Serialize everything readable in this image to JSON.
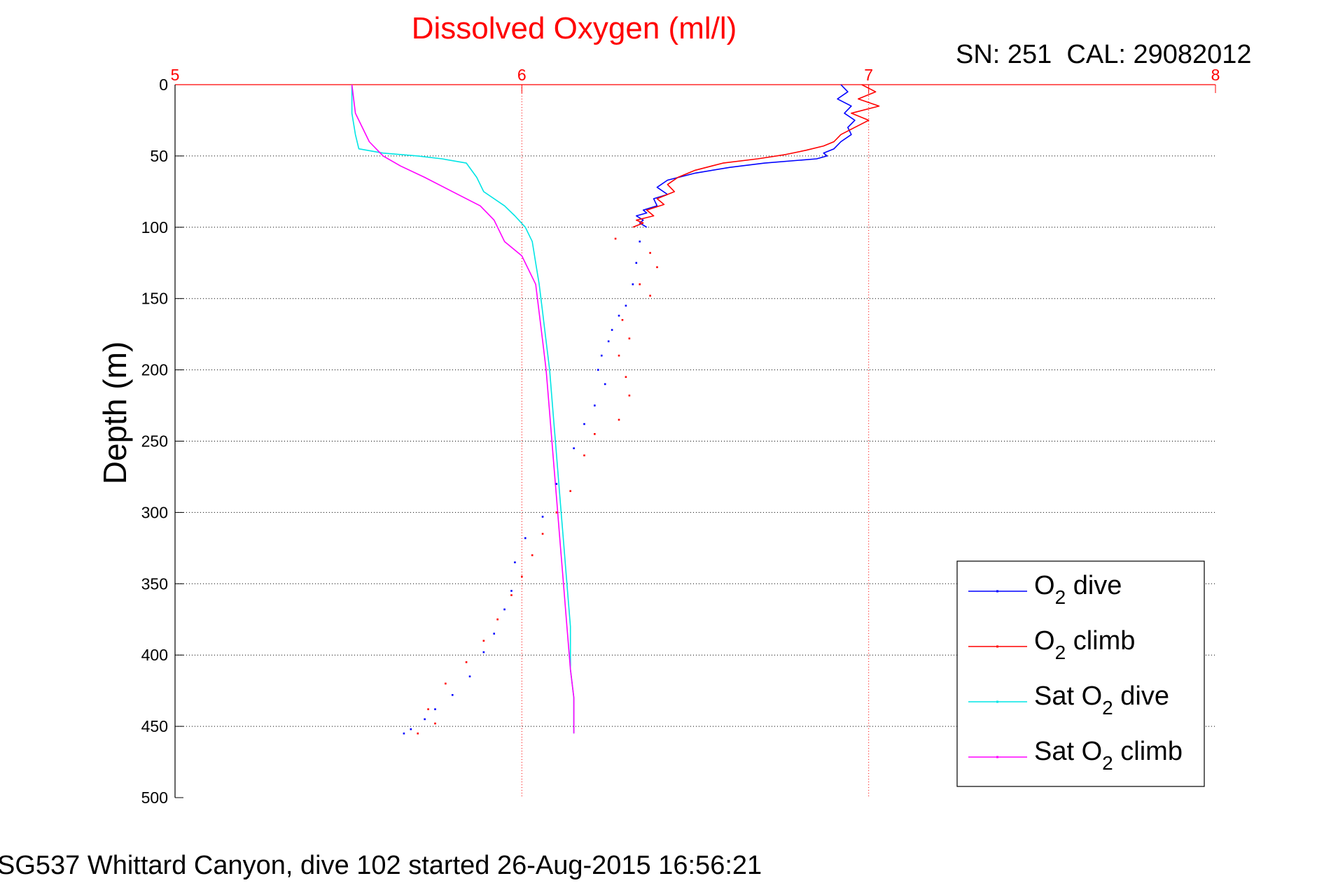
{
  "chart_data": {
    "type": "line",
    "title": "Dissolved Oxygen (ml/l)",
    "subtitle": "SN: 251  CAL: 29082012",
    "ylabel": "Depth (m)",
    "footer": "SG537 Whittard Canyon, dive 102 started 26-Aug-2015 16:56:21",
    "xlim": [
      5,
      8
    ],
    "ylim": [
      0,
      500
    ],
    "y_reversed": true,
    "x_axis_position": "top",
    "xticks": [
      "5",
      "6",
      "7",
      "8"
    ],
    "yticks": [
      "0",
      "50",
      "100",
      "150",
      "200",
      "250",
      "300",
      "350",
      "400",
      "450",
      "500"
    ],
    "grid": true,
    "legend_position": "lower-right",
    "colors": {
      "title": "#ff0000",
      "x_ticks": "#ff0000",
      "x_grid": "#ff0000",
      "y_grid": "#000000",
      "o2_dive": "#0000ff",
      "o2_climb": "#ff0000",
      "sat_dive": "#00e5e5",
      "sat_climb": "#ff00ff"
    },
    "legend": [
      {
        "pre": "O",
        "sub": "2",
        "post": " dive",
        "color_key": "o2_dive"
      },
      {
        "pre": "O",
        "sub": "2",
        "post": " climb",
        "color_key": "o2_climb"
      },
      {
        "pre": "Sat O",
        "sub": "2",
        "post": " dive",
        "color_key": "sat_dive"
      },
      {
        "pre": "Sat O",
        "sub": "2",
        "post": " climb",
        "color_key": "sat_climb"
      }
    ],
    "series": [
      {
        "name": "O2 dive",
        "color_key": "o2_dive",
        "x": [
          6.92,
          6.94,
          6.91,
          6.95,
          6.93,
          6.96,
          6.94,
          6.95,
          6.92,
          6.9,
          6.87,
          6.88,
          6.85,
          6.8,
          6.7,
          6.6,
          6.5,
          6.42,
          6.39,
          6.42,
          6.38,
          6.39,
          6.35,
          6.36,
          6.33,
          6.35,
          6.34,
          6.36
        ],
        "y": [
          0,
          5,
          10,
          15,
          20,
          25,
          30,
          35,
          40,
          45,
          48,
          50,
          52,
          53,
          55,
          58,
          62,
          67,
          72,
          77,
          80,
          85,
          88,
          90,
          92,
          95,
          97,
          100
        ]
      },
      {
        "name": "O2 climb",
        "color_key": "o2_climb",
        "x": [
          6.98,
          7.02,
          6.97,
          7.03,
          6.95,
          7.0,
          6.96,
          6.92,
          6.9,
          6.87,
          6.82,
          6.76,
          6.68,
          6.58,
          6.5,
          6.45,
          6.42,
          6.44,
          6.39,
          6.41,
          6.36,
          6.38,
          6.33,
          6.35,
          6.32
        ],
        "y": [
          0,
          5,
          10,
          15,
          20,
          25,
          30,
          35,
          40,
          43,
          46,
          49,
          52,
          55,
          60,
          65,
          70,
          75,
          80,
          84,
          88,
          92,
          95,
          97,
          100
        ]
      },
      {
        "name": "Sat O2 dive",
        "color_key": "sat_dive",
        "x": [
          5.51,
          5.51,
          5.52,
          5.53,
          5.6,
          5.7,
          5.77,
          5.84,
          5.87,
          5.89,
          5.95,
          5.98,
          6.01,
          6.03,
          6.04,
          6.05,
          6.06,
          6.07,
          6.08,
          6.09,
          6.1,
          6.11,
          6.12,
          6.13,
          6.14,
          6.14,
          6.15,
          6.15
        ],
        "y": [
          0,
          20,
          35,
          45,
          48,
          50,
          52,
          55,
          65,
          75,
          85,
          92,
          100,
          110,
          125,
          140,
          160,
          180,
          200,
          230,
          260,
          290,
          320,
          350,
          380,
          410,
          430,
          455
        ]
      },
      {
        "name": "Sat O2 climb",
        "color_key": "sat_climb",
        "x": [
          5.51,
          5.52,
          5.54,
          5.56,
          5.6,
          5.65,
          5.72,
          5.8,
          5.88,
          5.92,
          5.95,
          6.0,
          6.04,
          6.05,
          6.06,
          6.07,
          6.08,
          6.09,
          6.1,
          6.11,
          6.12,
          6.13,
          6.14,
          6.15,
          6.15
        ],
        "y": [
          0,
          20,
          30,
          40,
          50,
          57,
          65,
          75,
          85,
          95,
          110,
          120,
          140,
          160,
          180,
          200,
          230,
          260,
          290,
          320,
          350,
          380,
          410,
          430,
          455
        ]
      }
    ],
    "scatter": [
      {
        "name": "O2 dive",
        "color_key": "o2_dive",
        "x": [
          6.34,
          6.33,
          6.32,
          6.3,
          6.28,
          6.26,
          6.25,
          6.23,
          6.22,
          6.24,
          6.21,
          6.18,
          6.15,
          6.1,
          6.06,
          6.01,
          5.98,
          5.97,
          5.95,
          5.92,
          5.89,
          5.85,
          5.8,
          5.75,
          5.72,
          5.68,
          5.66
        ],
        "y": [
          110,
          125,
          140,
          155,
          162,
          172,
          180,
          190,
          200,
          210,
          225,
          238,
          255,
          280,
          303,
          318,
          335,
          355,
          368,
          385,
          398,
          415,
          428,
          438,
          445,
          452,
          455
        ]
      },
      {
        "name": "O2 climb",
        "color_key": "o2_climb",
        "x": [
          6.27,
          6.37,
          6.39,
          6.34,
          6.37,
          6.29,
          6.31,
          6.28,
          6.3,
          6.31,
          6.28,
          6.21,
          6.18,
          6.14,
          6.1,
          6.06,
          6.03,
          6.0,
          5.97,
          5.93,
          5.89,
          5.84,
          5.78,
          5.73,
          5.75,
          5.7
        ],
        "y": [
          108,
          118,
          128,
          140,
          148,
          165,
          178,
          190,
          205,
          218,
          235,
          245,
          260,
          285,
          300,
          315,
          330,
          345,
          358,
          375,
          390,
          405,
          420,
          438,
          448,
          455
        ]
      }
    ]
  }
}
